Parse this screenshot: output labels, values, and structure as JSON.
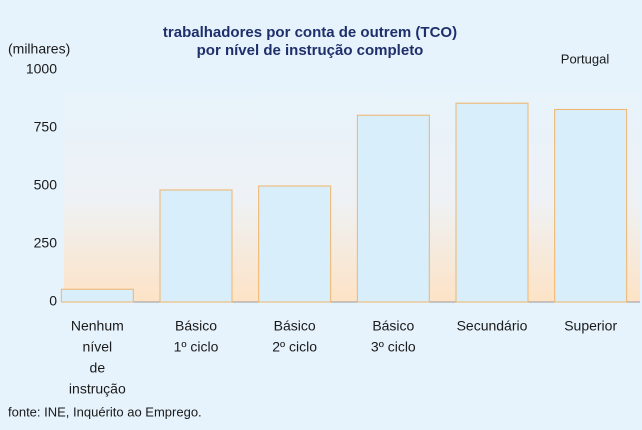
{
  "chart_data": {
    "type": "bar",
    "title": [
      "trabalhadores por conta de outrem (TCO)",
      "por nível de instrução completo"
    ],
    "y_label": "(milhares)",
    "annotation": "Portugal",
    "source": "fonte: INE, Inquérito ao Emprego.",
    "categories": [
      [
        "Nenhum",
        "nível",
        "de",
        "instrução"
      ],
      [
        "Básico",
        "1º ciclo"
      ],
      [
        "Básico",
        "2º ciclo"
      ],
      [
        "Básico",
        "3º ciclo"
      ],
      [
        "Secundário"
      ],
      [
        "Superior"
      ]
    ],
    "values": [
      55,
      483,
      500,
      805,
      857,
      830
    ],
    "color": "#d8eefb",
    "edge_color": "#f0b46a",
    "ylim": [
      0,
      1000
    ],
    "yticks": [
      0,
      250,
      500,
      750,
      1000
    ],
    "grid": false
  }
}
